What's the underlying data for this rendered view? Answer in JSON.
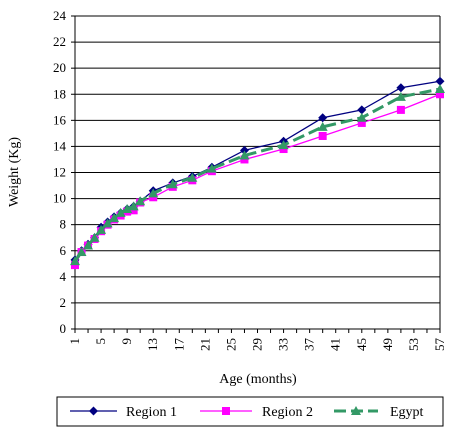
{
  "chart_data": {
    "type": "line",
    "xlabel": "Age (months)",
    "ylabel": "Weight (Kg)",
    "ylim": [
      0,
      24
    ],
    "yticks": [
      0,
      2,
      4,
      6,
      8,
      10,
      12,
      14,
      16,
      18,
      20,
      22,
      24
    ],
    "xlim": [
      1,
      57
    ],
    "xticks": [
      1,
      5,
      9,
      13,
      17,
      21,
      25,
      29,
      33,
      37,
      41,
      45,
      49,
      53,
      57
    ],
    "grid": "horizontal",
    "legend_position": "bottom",
    "series": [
      {
        "name": "Region 1",
        "color": "#000080",
        "marker": "diamond",
        "line": "solid",
        "x": [
          1,
          2,
          3,
          4,
          5,
          6,
          7,
          8,
          9,
          10,
          11,
          13,
          16,
          19,
          22,
          27,
          33,
          39,
          45,
          51,
          57
        ],
        "y": [
          5.3,
          6.0,
          6.5,
          7.0,
          7.8,
          8.2,
          8.6,
          8.9,
          9.2,
          9.4,
          9.8,
          10.6,
          11.2,
          11.7,
          12.4,
          13.7,
          14.4,
          16.2,
          16.8,
          18.5,
          19.0
        ]
      },
      {
        "name": "Region 2",
        "color": "#FF00FF",
        "marker": "square",
        "line": "solid",
        "x": [
          1,
          2,
          3,
          4,
          5,
          6,
          7,
          8,
          9,
          10,
          11,
          13,
          16,
          19,
          22,
          27,
          33,
          39,
          45,
          51,
          57
        ],
        "y": [
          4.9,
          5.9,
          6.4,
          6.9,
          7.5,
          8.0,
          8.4,
          8.7,
          9.0,
          9.1,
          9.7,
          10.1,
          10.9,
          11.4,
          12.1,
          13.0,
          13.8,
          14.8,
          15.8,
          16.8,
          18.0
        ]
      },
      {
        "name": "Egypt",
        "color": "#339966",
        "marker": "triangle",
        "line": "dashed",
        "x": [
          1,
          2,
          3,
          4,
          5,
          6,
          7,
          8,
          9,
          10,
          11,
          13,
          16,
          19,
          22,
          27,
          33,
          39,
          45,
          51,
          57
        ],
        "y": [
          5.2,
          5.9,
          6.4,
          7.0,
          7.6,
          8.1,
          8.5,
          8.9,
          9.2,
          9.4,
          9.8,
          10.4,
          11.1,
          11.6,
          12.3,
          13.3,
          14.1,
          15.5,
          16.2,
          17.8,
          18.4
        ]
      }
    ]
  }
}
